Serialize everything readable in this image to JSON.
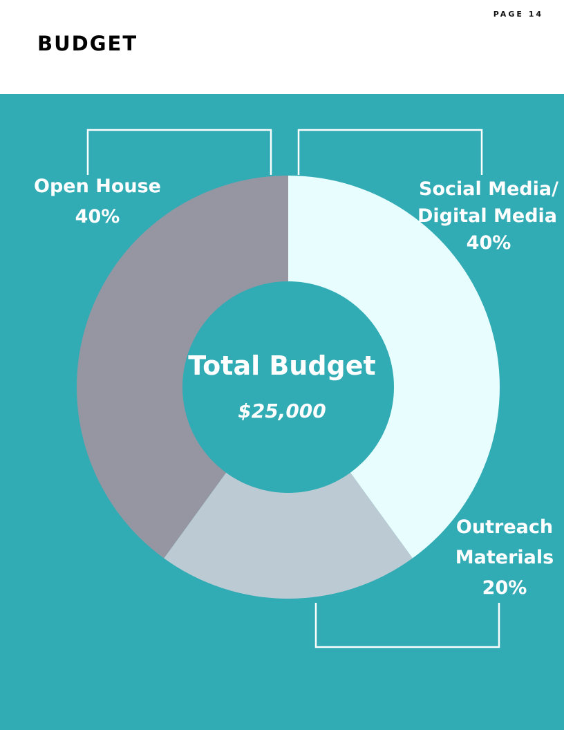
{
  "header": {
    "page_label": "PAGE 14",
    "title": "BUDGET"
  },
  "colors": {
    "background": "#31abb4",
    "open_house": "#9696a3",
    "social_media": "#e8fdfe",
    "outreach": "#bccad3",
    "bracket": "#ffffff"
  },
  "chart_data": {
    "type": "pie",
    "center": {
      "title": "Total Budget",
      "value": "$25,000"
    },
    "slices": [
      {
        "label_lines": [
          "Social Media/",
          "Digital Media"
        ],
        "percent_label": "40%",
        "value": 40
      },
      {
        "label_lines": [
          "Outreach",
          "Materials"
        ],
        "percent_label": "20%",
        "value": 20
      },
      {
        "label_lines": [
          "Open House"
        ],
        "percent_label": "40%",
        "value": 40
      }
    ]
  }
}
